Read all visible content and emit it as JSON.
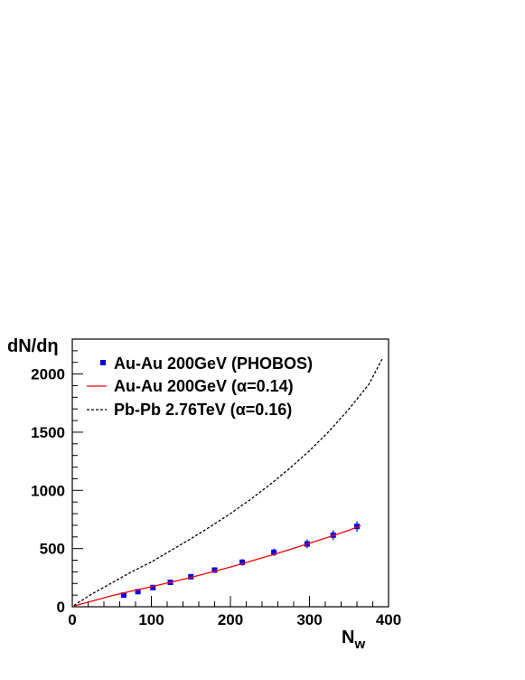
{
  "chart_data": {
    "type": "line",
    "title": "",
    "xlabel": "N",
    "xlabel_sub": "w",
    "ylabel": "dN/dη",
    "xlim": [
      0,
      400
    ],
    "ylim": [
      0,
      2300
    ],
    "x_ticks": [
      0,
      100,
      200,
      300,
      400
    ],
    "y_ticks": [
      0,
      500,
      1000,
      1500,
      2000
    ],
    "grid": false,
    "legend_position": "top-left",
    "series": [
      {
        "name": "Au-Au 200GeV (PHOBOS)",
        "kind": "points",
        "color": "#0000ff",
        "x": [
          65,
          83,
          102,
          124,
          150,
          180,
          215,
          255,
          297,
          330,
          360
        ],
        "y": [
          100,
          130,
          165,
          210,
          258,
          315,
          382,
          468,
          540,
          615,
          690
        ],
        "yerr": [
          12,
          12,
          14,
          16,
          18,
          22,
          28,
          32,
          38,
          42,
          45
        ]
      },
      {
        "name": "Au-Au 200GeV (α=0.14)",
        "kind": "line",
        "style": "solid",
        "color": "#ff0000",
        "x": [
          2,
          25,
          50,
          75,
          100,
          125,
          150,
          175,
          200,
          225,
          250,
          275,
          300,
          325,
          350,
          365
        ],
        "y": [
          7,
          48,
          95,
          135,
          172,
          212,
          252,
          296,
          341,
          390,
          440,
          492,
          546,
          600,
          657,
          697
        ]
      },
      {
        "name": "Pb-Pb 2.76TeV (α=0.16)",
        "kind": "line",
        "style": "dashed",
        "color": "#000000",
        "x": [
          2,
          25,
          50,
          75,
          100,
          125,
          150,
          175,
          200,
          225,
          250,
          275,
          300,
          325,
          350,
          375,
          392
        ],
        "y": [
          12,
          110,
          205,
          300,
          385,
          485,
          585,
          690,
          800,
          920,
          1050,
          1190,
          1340,
          1510,
          1700,
          1910,
          2130
        ]
      }
    ]
  }
}
